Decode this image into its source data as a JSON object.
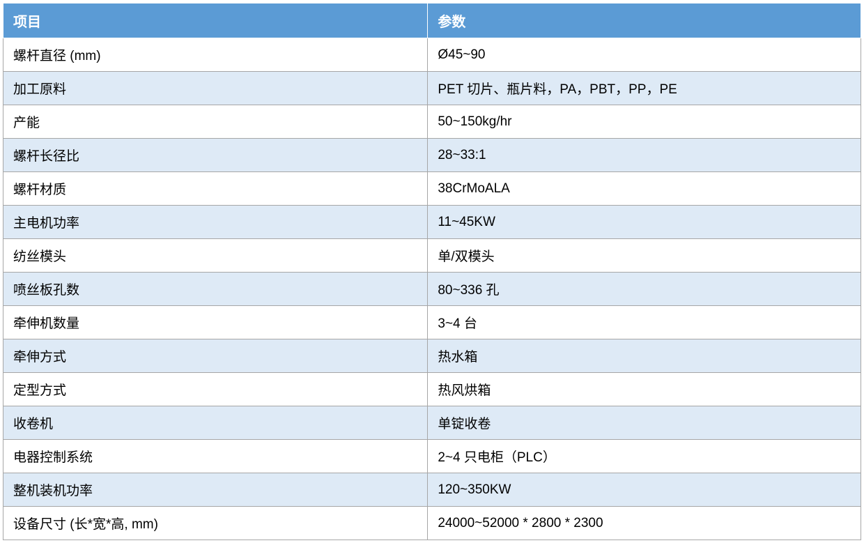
{
  "table": {
    "type": "table",
    "columns": [
      {
        "header": "项目",
        "width_pct": 49.5
      },
      {
        "header": "参数",
        "width_pct": 50.5
      }
    ],
    "rows": [
      [
        "螺杆直径  (mm)",
        "Ø45~90"
      ],
      [
        "加工原料",
        "PET 切片、瓶片料，PA，PBT，PP，PE"
      ],
      [
        "产能",
        "50~150kg/hr"
      ],
      [
        "螺杆长径比",
        "28~33:1"
      ],
      [
        "螺杆材质",
        "38CrMoALA"
      ],
      [
        "主电机功率",
        "11~45KW"
      ],
      [
        "纺丝模头",
        "单/双模头"
      ],
      [
        "喷丝板孔数",
        "80~336  孔"
      ],
      [
        "牵伸机数量",
        "3~4  台"
      ],
      [
        "牵伸方式",
        "热水箱"
      ],
      [
        "定型方式",
        "热风烘箱"
      ],
      [
        "收卷机",
        "单锭收卷"
      ],
      [
        "电器控制系统",
        "2~4  只电柜（PLC）"
      ],
      [
        "整机装机功率",
        "120~350KW"
      ],
      [
        "设备尺寸  (长*宽*高, mm)",
        "24000~52000 * 2800 * 2300"
      ]
    ],
    "header_bg_color": "#5b9bd5",
    "header_text_color": "#ffffff",
    "row_odd_bg_color": "#ffffff",
    "row_even_bg_color": "#deeaf6",
    "border_color": "#a6a6a6",
    "text_color": "#000000",
    "header_fontsize": 20,
    "cell_fontsize": 19,
    "font_family": "Microsoft YaHei"
  }
}
